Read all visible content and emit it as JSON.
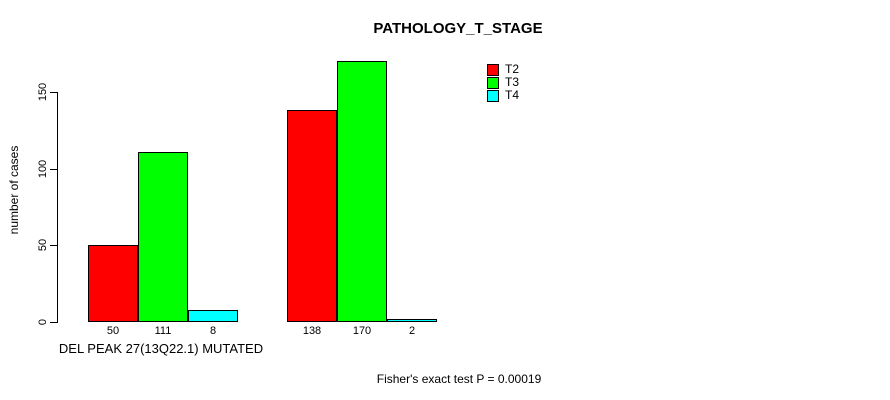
{
  "chart_data": {
    "type": "bar",
    "title": "PATHOLOGY_T_STAGE",
    "ylabel": "number of cases",
    "xlabel": "DEL PEAK 27(13Q22.1) MUTATED",
    "categories": [
      "DEL PEAK 27(13Q22.1) MUTATED",
      ""
    ],
    "series": [
      {
        "name": "T2",
        "color": "#ff0000",
        "values": [
          50,
          138
        ]
      },
      {
        "name": "T3",
        "color": "#00ff00",
        "values": [
          111,
          170
        ]
      },
      {
        "name": "T4",
        "color": "#00ffff",
        "values": [
          8,
          2
        ]
      }
    ],
    "yticks": [
      0,
      50,
      100,
      150
    ],
    "ylim": [
      0,
      170
    ],
    "grid": false,
    "legend_position": "top-right",
    "bar_value_labels": true,
    "bar_border_color": "#000000",
    "annotation": "Fisher's exact test P = 0.00019"
  }
}
